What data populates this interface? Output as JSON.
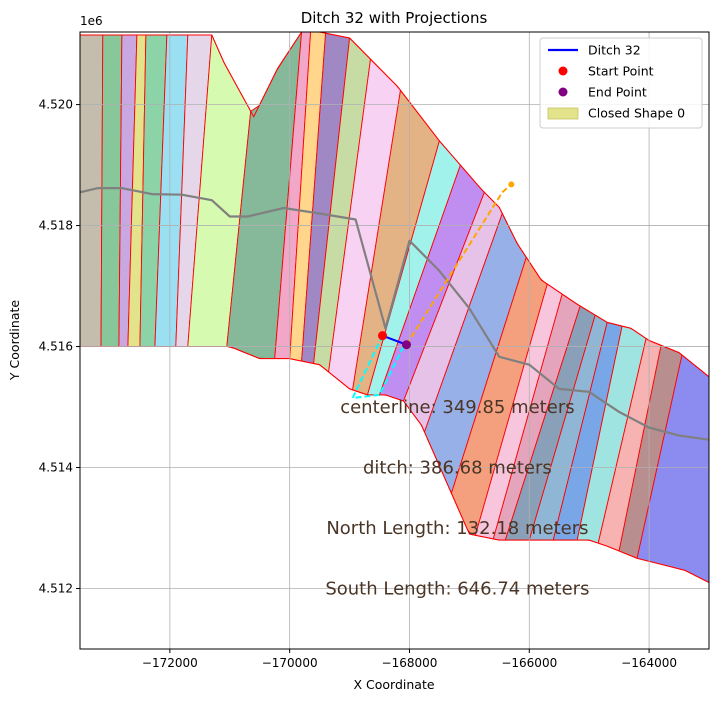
{
  "chart_data": {
    "type": "line",
    "title": "Ditch 32 with Projections",
    "xlabel": "X Coordinate",
    "ylabel": "Y Coordinate",
    "offset_label": "1e6",
    "xlim": [
      -173500,
      -163000
    ],
    "ylim": [
      4.511,
      4.5212
    ],
    "x_ticks": [
      -172000,
      -170000,
      -168000,
      -166000,
      -164000
    ],
    "x_tick_labels": [
      "−172000",
      "−170000",
      "−168000",
      "−166000",
      "−164000"
    ],
    "y_ticks": [
      4.512,
      4.514,
      4.516,
      4.518,
      4.52
    ],
    "y_tick_labels": [
      "4.512",
      "4.514",
      "4.516",
      "4.518",
      "4.520"
    ],
    "grid": true,
    "legend_position": "top-right",
    "legend": [
      {
        "label": "Ditch 32",
        "kind": "line",
        "color": "#0000ff"
      },
      {
        "label": "Start Point",
        "kind": "marker",
        "color": "#ff0000"
      },
      {
        "label": "End Point",
        "kind": "marker",
        "color": "#800080"
      },
      {
        "label": "Closed Shape 0",
        "kind": "patch",
        "color": "#e3e38c"
      }
    ],
    "ditch": {
      "x": [
        -168450,
        -168050
      ],
      "y": [
        4.51618,
        4.51603
      ],
      "color": "#0000ff"
    },
    "start_point": {
      "x": -168450,
      "y": 4.51618,
      "color": "#ff0000"
    },
    "end_point": {
      "x": -168050,
      "y": 4.51603,
      "color": "#800080"
    },
    "centerline": {
      "color": "#808080",
      "x": [
        -173500,
        -173200,
        -172800,
        -172300,
        -171800,
        -171300,
        -171000,
        -170700,
        -170100,
        -169500,
        -168900,
        -168400,
        -168000,
        -167500,
        -167000,
        -166500,
        -166000,
        -165500,
        -165000,
        -164500,
        -164000,
        -163500,
        -163000
      ],
      "y": [
        4.51855,
        4.51862,
        4.51862,
        4.51852,
        4.51851,
        4.51842,
        4.51815,
        4.51815,
        4.51829,
        4.5182,
        4.5181,
        4.5163,
        4.51775,
        4.51725,
        4.51663,
        4.51583,
        4.5157,
        4.5153,
        4.51525,
        4.51492,
        4.51466,
        4.51453,
        4.51446
      ]
    },
    "north_projection": {
      "color": "#ffa500",
      "x": [
        -168050,
        -166450,
        -166300
      ],
      "y": [
        4.51603,
        4.51855,
        4.51868
      ]
    },
    "south_projection": {
      "color": "#00ffff",
      "x": [
        -168450,
        -168950,
        -168500,
        -168100
      ],
      "y": [
        4.51618,
        4.51515,
        4.5152,
        4.516
      ]
    },
    "annotations": [
      {
        "text": "centerline: 349.85 meters",
        "x": -167200,
        "y": 4.515
      },
      {
        "text": "ditch: 386.68 meters",
        "x": -167200,
        "y": 4.514
      },
      {
        "text": "North Length: 132.18 meters",
        "x": -167200,
        "y": 4.513
      },
      {
        "text": "South Length: 646.74 meters",
        "x": -167200,
        "y": 4.512
      }
    ],
    "closed_shape": {
      "label": "Closed Shape 0",
      "edge_color": "#ff0000",
      "north_x": [
        -173500,
        -172800,
        -171300,
        -171100,
        -170600,
        -170200,
        -169800,
        -169500,
        -169000,
        -168200,
        -167500,
        -166800,
        -166500,
        -166200,
        -165800,
        -165200,
        -164700,
        -164300,
        -164000,
        -163500,
        -163000
      ],
      "north_y": [
        4.52115,
        4.52115,
        4.52115,
        4.5207,
        4.5198,
        4.5206,
        4.5212,
        4.5212,
        4.5211,
        4.5203,
        4.5194,
        4.5186,
        4.5183,
        4.5177,
        4.5171,
        4.5167,
        4.5164,
        4.5163,
        4.5161,
        4.5159,
        4.5155
      ],
      "south_x": [
        -163000,
        -163400,
        -163800,
        -164200,
        -164700,
        -165000,
        -165500,
        -166000,
        -166500,
        -167000,
        -167400,
        -167800,
        -168100,
        -168400,
        -168700,
        -169000,
        -169500,
        -170000,
        -170500,
        -171000,
        -172000,
        -173000,
        -173500
      ],
      "south_y": [
        4.5121,
        4.5123,
        4.5124,
        4.5125,
        4.5127,
        4.5128,
        4.5128,
        4.5128,
        4.5128,
        4.5129,
        4.5138,
        4.5147,
        4.5151,
        4.5152,
        4.5152,
        4.5153,
        4.5157,
        4.5158,
        4.5158,
        4.516,
        4.516,
        4.516,
        4.516
      ],
      "fills": [
        "#c4bdad",
        "#88c79a",
        "#c9a7e0",
        "#e3e38c",
        "#8cd4a7",
        "#9ae0f2",
        "#e6d6ea",
        "#d6fbb0",
        "#86b89a",
        "#f2a6c8",
        "#ffd68c",
        "#9f88c4",
        "#c6dca4",
        "#f7d2f2",
        "#e3b385",
        "#a2f2ec",
        "#c08ef0",
        "#e6c2e8",
        "#98b0e8",
        "#f4a07e",
        "#f7c6dc",
        "#e4a4bc",
        "#8aa0b8",
        "#90b6d6",
        "#78a6e6",
        "#9fe4e0",
        "#f7b2b2",
        "#b88e8e",
        "#8c8cf0"
      ],
      "stripe_x_north": [
        -173500,
        -173120,
        -172800,
        -172550,
        -172400,
        -172050,
        -171700,
        -171300,
        -170650,
        -169800,
        -169650,
        -169400,
        -169000,
        -168650,
        -168150,
        -167500,
        -167150,
        -166750,
        -166450,
        -166050,
        -165700,
        -165450,
        -165150,
        -164900,
        -164700,
        -164450,
        -164050,
        -163800,
        -163450,
        -163000
      ],
      "stripe_x_south": [
        -173500,
        -173150,
        -172850,
        -172700,
        -172500,
        -172250,
        -171900,
        -171700,
        -171050,
        -170250,
        -170000,
        -169800,
        -169600,
        -169350,
        -168950,
        -168700,
        -168500,
        -168100,
        -167750,
        -167300,
        -166900,
        -166600,
        -166400,
        -166000,
        -165600,
        -165200,
        -164850,
        -164500,
        -164200,
        -163000
      ]
    }
  }
}
